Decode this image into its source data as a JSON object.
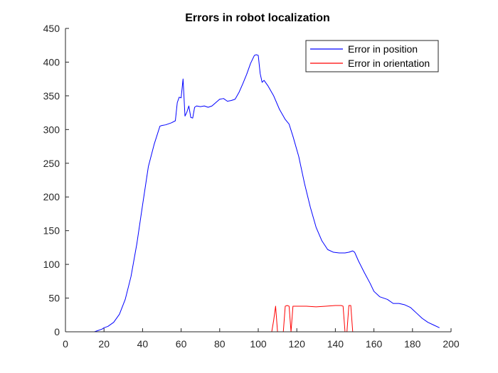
{
  "chart_data": {
    "type": "line",
    "title": "Errors in robot localization",
    "xlabel": "",
    "ylabel": "",
    "xlim": [
      0,
      200
    ],
    "ylim": [
      0,
      450
    ],
    "xticks": [
      0,
      20,
      40,
      60,
      80,
      100,
      120,
      140,
      160,
      180,
      200
    ],
    "yticks": [
      0,
      50,
      100,
      150,
      200,
      250,
      300,
      350,
      400,
      450
    ],
    "grid": false,
    "legend_position": "top-right",
    "series": [
      {
        "name": "Error in position",
        "color": "#0000ff",
        "x": [
          1,
          10,
          15,
          17,
          19,
          20,
          22,
          25,
          28,
          31,
          34,
          37,
          40,
          43,
          46,
          49,
          50,
          52,
          55,
          57,
          58,
          59,
          60,
          61,
          62,
          63,
          64,
          65,
          66,
          67,
          68,
          70,
          72,
          74,
          76,
          78,
          80,
          82,
          84,
          86,
          88,
          90,
          92,
          94,
          96,
          98,
          99,
          100,
          101,
          102,
          103,
          105,
          108,
          111,
          114,
          116,
          118,
          121,
          124,
          127,
          130,
          133,
          136,
          139,
          142,
          145,
          147,
          149,
          150,
          152,
          155,
          158,
          160,
          163,
          165,
          167,
          170,
          173,
          176,
          179,
          182,
          185,
          188,
          191,
          194
        ],
        "y": [
          0,
          0,
          0,
          2,
          4,
          6,
          8,
          14,
          26,
          48,
          82,
          130,
          188,
          245,
          278,
          305,
          306,
          307,
          310,
          313,
          340,
          348,
          347,
          375,
          320,
          326,
          335,
          318,
          317,
          333,
          335,
          334,
          335,
          333,
          335,
          340,
          345,
          346,
          342,
          343,
          345,
          355,
          368,
          382,
          398,
          410,
          411,
          410,
          383,
          370,
          373,
          365,
          350,
          330,
          315,
          308,
          290,
          260,
          220,
          185,
          155,
          135,
          122,
          118,
          117,
          117,
          118,
          120,
          118,
          105,
          88,
          72,
          60,
          52,
          50,
          48,
          42,
          42,
          40,
          36,
          28,
          20,
          14,
          10,
          6
        ]
      },
      {
        "name": "Error in orientation",
        "color": "#ff0000",
        "x": [
          1,
          107,
          108,
          109,
          110,
          113,
          114,
          115,
          116,
          117,
          118,
          119,
          120,
          125,
          130,
          135,
          140,
          143,
          144,
          145,
          146,
          147,
          148,
          149,
          150,
          160,
          170,
          180,
          194
        ],
        "y": [
          0,
          0,
          17,
          38,
          0,
          0,
          38,
          39,
          38,
          0,
          38,
          38,
          38,
          38,
          37,
          38,
          39,
          39,
          38,
          0,
          0,
          39,
          39,
          0,
          0,
          0,
          0,
          0,
          0
        ]
      }
    ]
  }
}
